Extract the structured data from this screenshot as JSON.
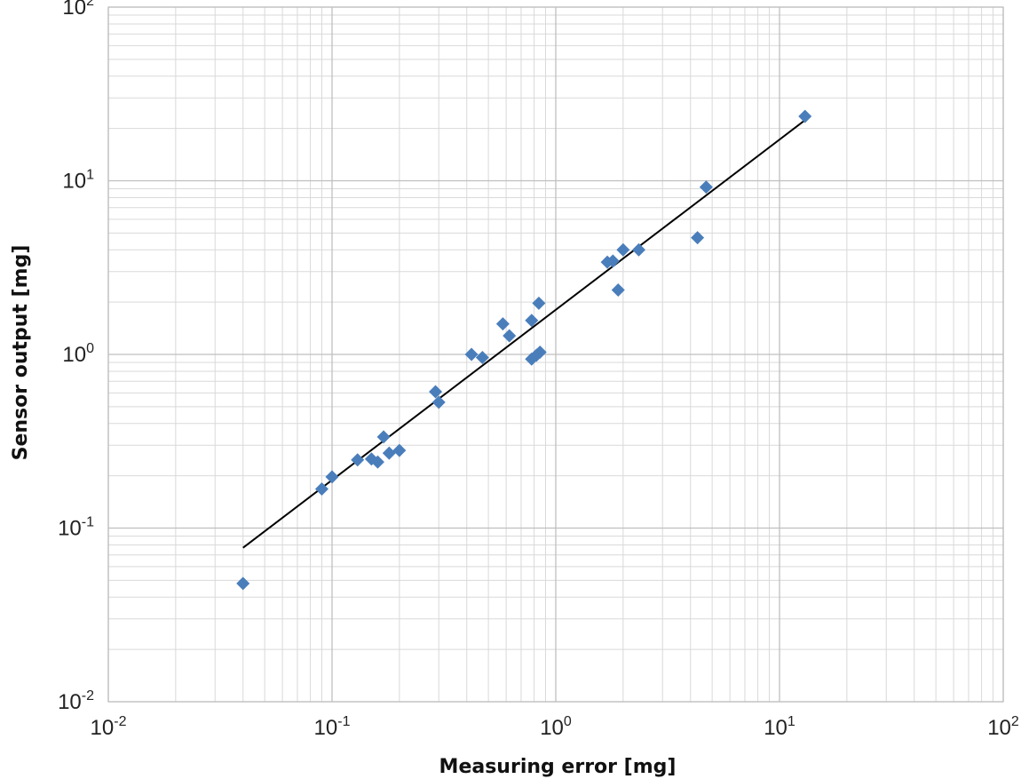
{
  "chart_data": {
    "type": "scatter",
    "title": "",
    "xlabel": "Measuring error [mg]",
    "ylabel": "Sensor output [mg]",
    "x_scale": "log",
    "y_scale": "log",
    "xlim": [
      0.01,
      100
    ],
    "ylim": [
      0.01,
      100
    ],
    "x_ticks": [
      {
        "base": "10",
        "exp": "-2"
      },
      {
        "base": "10",
        "exp": "-1"
      },
      {
        "base": "10",
        "exp": "0"
      },
      {
        "base": "10",
        "exp": "1"
      },
      {
        "base": "10",
        "exp": "2"
      }
    ],
    "y_ticks": [
      {
        "base": "10",
        "exp": "-2"
      },
      {
        "base": "10",
        "exp": "-1"
      },
      {
        "base": "10",
        "exp": "0"
      },
      {
        "base": "10",
        "exp": "1"
      },
      {
        "base": "10",
        "exp": "2"
      }
    ],
    "grid": true,
    "minor_grid": true,
    "legend": "none",
    "marker": "diamond",
    "marker_color": "#4a7ebb",
    "trendline_color": "#000000",
    "series": [
      {
        "points": [
          {
            "x": 0.04,
            "y": 0.048
          },
          {
            "x": 0.09,
            "y": 0.168
          },
          {
            "x": 0.1,
            "y": 0.197
          },
          {
            "x": 0.13,
            "y": 0.247
          },
          {
            "x": 0.15,
            "y": 0.25
          },
          {
            "x": 0.16,
            "y": 0.24
          },
          {
            "x": 0.17,
            "y": 0.335
          },
          {
            "x": 0.18,
            "y": 0.27
          },
          {
            "x": 0.2,
            "y": 0.28
          },
          {
            "x": 0.29,
            "y": 0.61
          },
          {
            "x": 0.3,
            "y": 0.53
          },
          {
            "x": 0.42,
            "y": 1.0
          },
          {
            "x": 0.47,
            "y": 0.96
          },
          {
            "x": 0.58,
            "y": 1.5
          },
          {
            "x": 0.62,
            "y": 1.28
          },
          {
            "x": 0.78,
            "y": 1.57
          },
          {
            "x": 0.78,
            "y": 0.94
          },
          {
            "x": 0.82,
            "y": 0.99
          },
          {
            "x": 0.84,
            "y": 1.97
          },
          {
            "x": 0.85,
            "y": 1.03
          },
          {
            "x": 1.7,
            "y": 3.4
          },
          {
            "x": 1.8,
            "y": 3.45
          },
          {
            "x": 1.9,
            "y": 2.35
          },
          {
            "x": 2.0,
            "y": 4.0
          },
          {
            "x": 2.35,
            "y": 4.0
          },
          {
            "x": 4.3,
            "y": 4.7
          },
          {
            "x": 4.7,
            "y": 9.2
          },
          {
            "x": 13.0,
            "y": 23.5
          }
        ]
      }
    ],
    "trendline": {
      "type": "power",
      "from": {
        "x": 0.04,
        "y": 0.077
      },
      "to": {
        "x": 12.8,
        "y": 22.0
      }
    }
  }
}
